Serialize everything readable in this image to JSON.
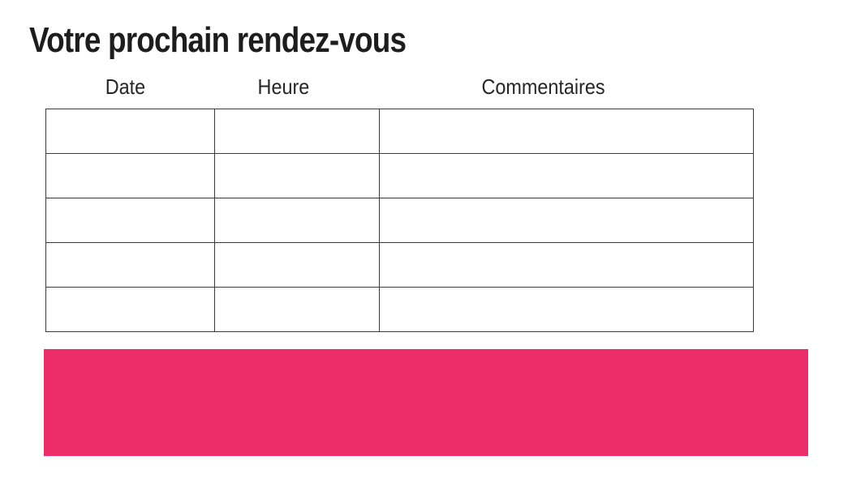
{
  "page": {
    "background_color": "#ffffff"
  },
  "header": {
    "title": "Votre prochain rendez-vous",
    "title_color": "#1d1d1d"
  },
  "appointments_table": {
    "columns": [
      "Date",
      "Heure",
      "Commentaires"
    ],
    "rows": [
      [
        "",
        "",
        ""
      ],
      [
        "",
        "",
        ""
      ],
      [
        "",
        "",
        ""
      ],
      [
        "",
        "",
        ""
      ],
      [
        "",
        "",
        ""
      ]
    ],
    "border_color": "#3a3a3a"
  },
  "banner": {
    "color": "#ED2D6A"
  }
}
